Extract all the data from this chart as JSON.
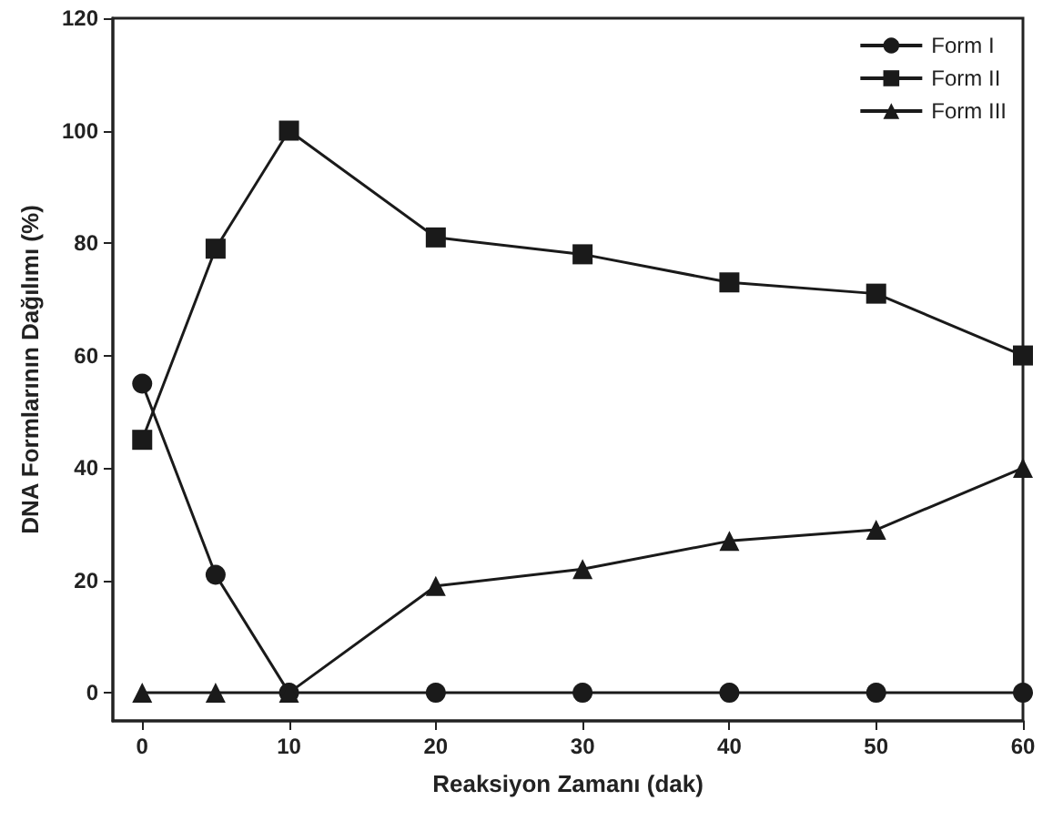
{
  "chart_data": {
    "type": "line",
    "xlabel": "Reaksiyon Zamanı (dak)",
    "ylabel": "DNA Formlarının Dağılımı (%)",
    "x": [
      0,
      5,
      10,
      20,
      30,
      40,
      50,
      60
    ],
    "series": [
      {
        "name": "Form I",
        "color": "#1a1a1a",
        "marker": "circle",
        "values": [
          55,
          21,
          0,
          0,
          0,
          0,
          0,
          0
        ]
      },
      {
        "name": "Form II",
        "color": "#1a1a1a",
        "marker": "square",
        "values": [
          45,
          79,
          100,
          81,
          78,
          73,
          71,
          60
        ]
      },
      {
        "name": "Form III",
        "color": "#1a1a1a",
        "marker": "triangle",
        "values": [
          0,
          0,
          0,
          19,
          22,
          27,
          29,
          40
        ]
      }
    ],
    "xlim": [
      -2,
      60
    ],
    "xticks": [
      0,
      10,
      20,
      30,
      40,
      50,
      60
    ],
    "ylim": [
      -5,
      120
    ],
    "yticks": [
      0,
      20,
      40,
      60,
      80,
      100,
      120
    ],
    "grid": false,
    "legend": "top right",
    "line_style": "solid"
  }
}
